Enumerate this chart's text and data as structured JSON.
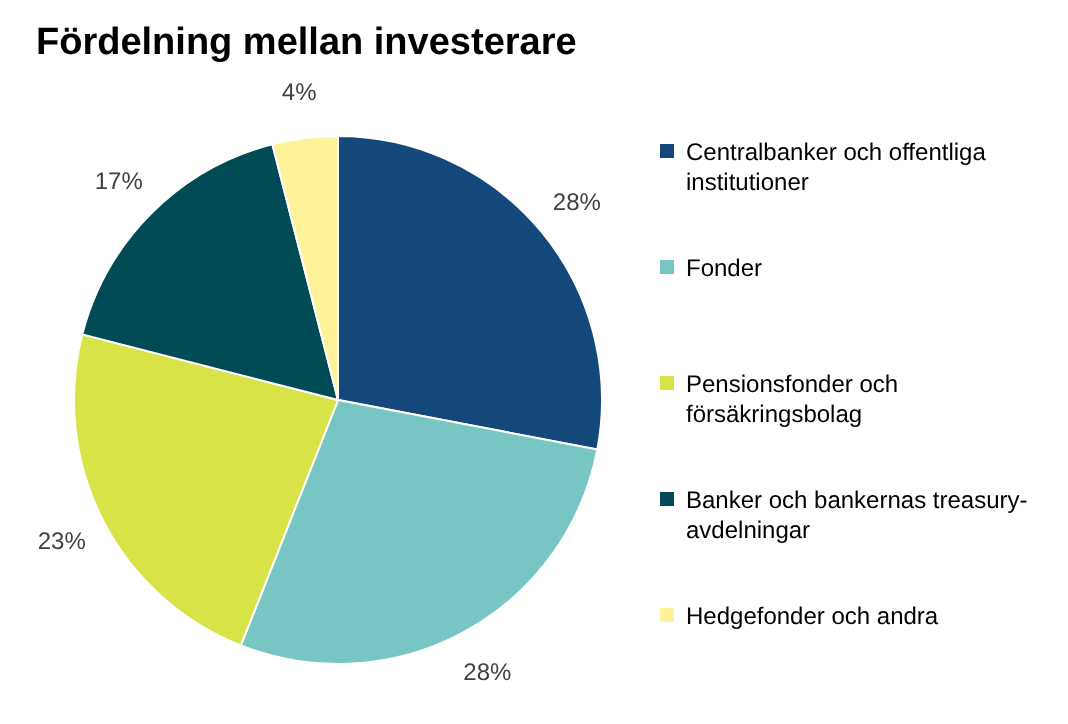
{
  "chart_data": {
    "type": "pie",
    "title": "Fördelning mellan investerare",
    "categories": [
      "Centralbanker och offentliga institutioner",
      "Fonder",
      "Pensionsfonder och försäkringsbolag",
      "Banker och bankernas treasury-avdelningar",
      "Hedgefonder och andra"
    ],
    "values": [
      28,
      28,
      23,
      17,
      4
    ],
    "colors": [
      "#15487a",
      "#78c6c4",
      "#d7e346",
      "#004b55",
      "#fff39a"
    ],
    "value_labels": [
      "28%",
      "28%",
      "23%",
      "17%",
      "4%"
    ],
    "legend": "right"
  }
}
